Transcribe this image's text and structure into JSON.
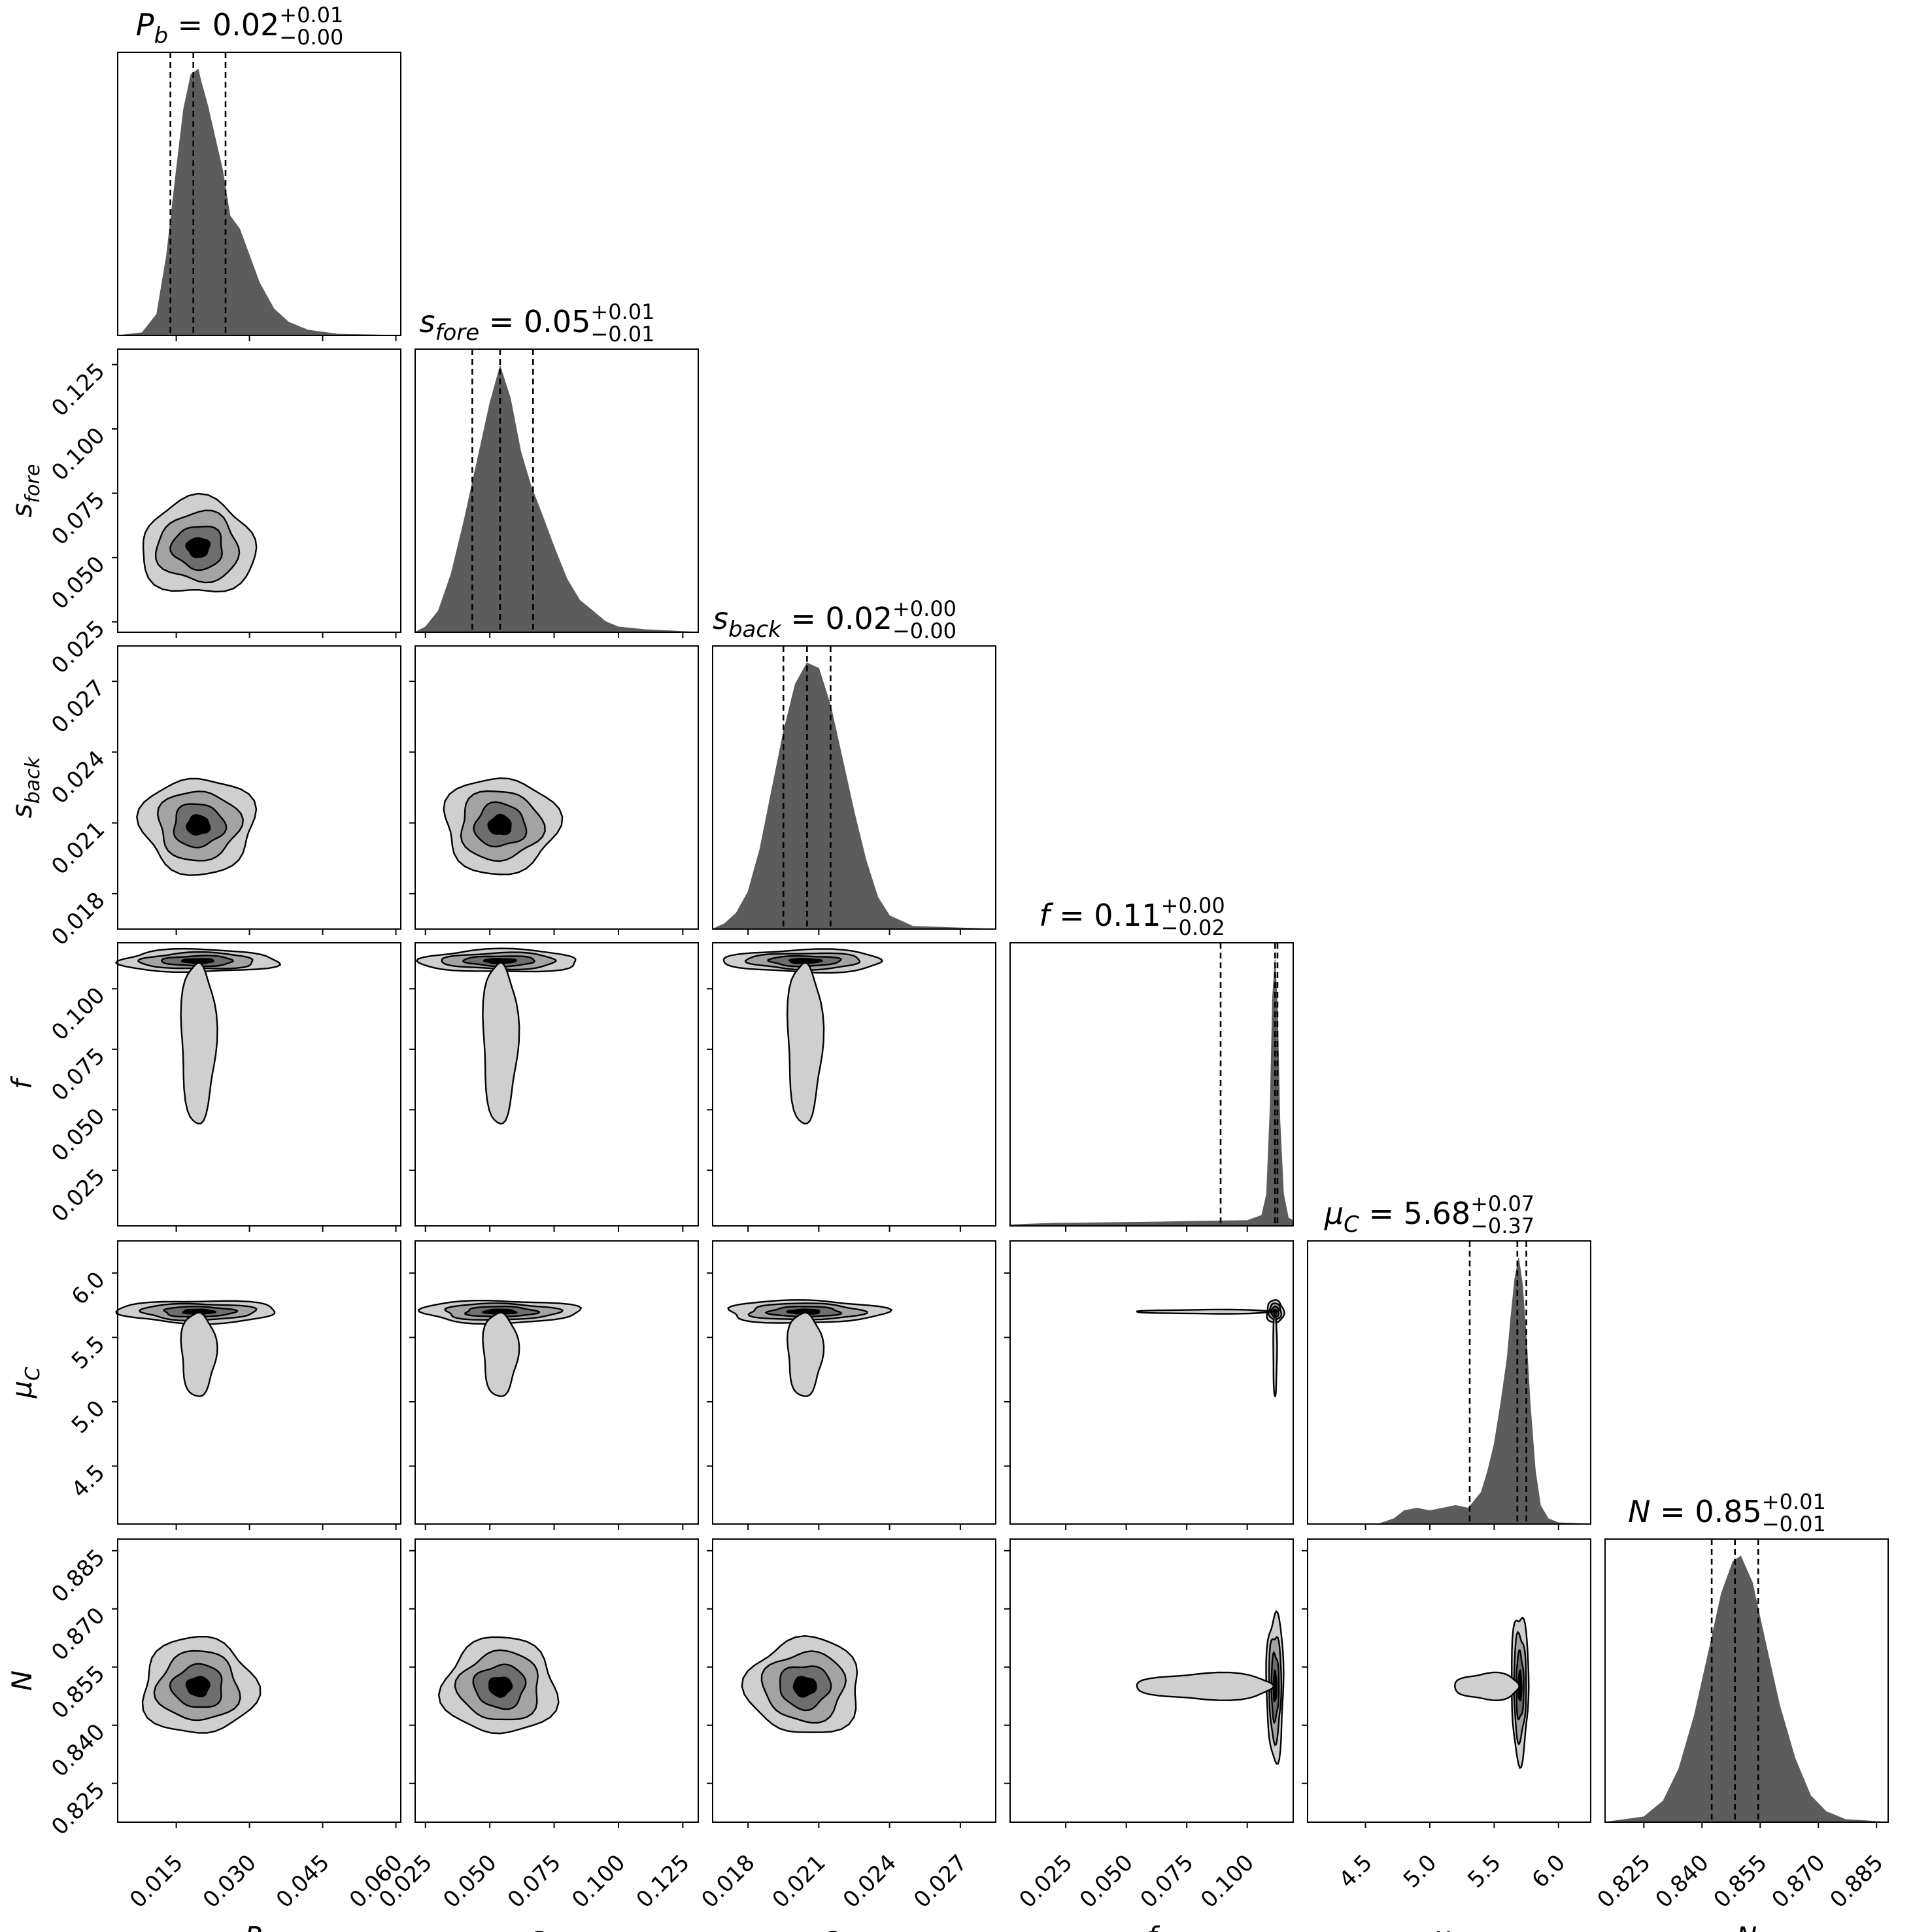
{
  "colors": {
    "background": "#ffffff",
    "hist_fill": "#5c5c5c",
    "contour_levels": [
      "#cfcfcf",
      "#a3a3a3",
      "#6e6e6e",
      "#000000"
    ],
    "axis": "#000000"
  },
  "chart_data": {
    "type": "corner",
    "grid": false,
    "parameters": [
      {
        "key": "Pb",
        "label": {
          "base": "P",
          "sub": "b"
        },
        "title": {
          "value": "0.02",
          "plus": "+0.01",
          "minus": "−0.00"
        },
        "range": [
          0.003,
          0.061
        ],
        "ticks": [
          0.015,
          0.03,
          0.045,
          0.06
        ],
        "tick_labels": [
          "0.015",
          "0.030",
          "0.045",
          "0.060"
        ],
        "median": 0.02,
        "plus": 0.01,
        "minus": 0.0,
        "quantiles": [
          0.0138,
          0.0185,
          0.0251
        ],
        "hist": {
          "x": [
            0.003,
            0.008,
            0.011,
            0.013,
            0.015,
            0.0165,
            0.018,
            0.0195,
            0.02,
            0.0215,
            0.023,
            0.0245,
            0.026,
            0.028,
            0.03,
            0.032,
            0.035,
            0.038,
            0.042,
            0.048,
            0.061
          ],
          "y": [
            0,
            0.01,
            0.08,
            0.3,
            0.62,
            0.85,
            0.98,
            1.0,
            0.96,
            0.86,
            0.74,
            0.62,
            0.45,
            0.4,
            0.3,
            0.2,
            0.1,
            0.05,
            0.02,
            0.005,
            0
          ]
        }
      },
      {
        "key": "s_fore",
        "label": {
          "base": "s",
          "sub": "fore"
        },
        "title": {
          "value": "0.05",
          "plus": "+0.01",
          "minus": "−0.01"
        },
        "range": [
          0.021,
          0.131
        ],
        "ticks": [
          0.025,
          0.05,
          0.075,
          0.1,
          0.125
        ],
        "tick_labels": [
          "0.025",
          "0.050",
          "0.075",
          "0.100",
          "0.125"
        ],
        "median": 0.05,
        "plus": 0.01,
        "minus": 0.01,
        "quantiles": [
          0.0432,
          0.054,
          0.0668
        ],
        "hist": {
          "x": [
            0.021,
            0.025,
            0.03,
            0.035,
            0.04,
            0.045,
            0.05,
            0.054,
            0.058,
            0.062,
            0.066,
            0.07,
            0.075,
            0.08,
            0.085,
            0.09,
            0.095,
            0.1,
            0.11,
            0.131
          ],
          "y": [
            0,
            0.02,
            0.08,
            0.22,
            0.42,
            0.64,
            0.86,
            1.0,
            0.88,
            0.68,
            0.55,
            0.45,
            0.32,
            0.2,
            0.12,
            0.08,
            0.04,
            0.02,
            0.01,
            0
          ]
        }
      },
      {
        "key": "s_back",
        "label": {
          "base": "s",
          "sub": "back"
        },
        "title": {
          "value": "0.02",
          "plus": "+0.00",
          "minus": "−0.00"
        },
        "range": [
          0.0165,
          0.0285
        ],
        "ticks": [
          0.018,
          0.021,
          0.024,
          0.027
        ],
        "tick_labels": [
          "0.018",
          "0.021",
          "0.024",
          "0.027"
        ],
        "median": 0.02,
        "plus": 0.0,
        "minus": 0.0,
        "quantiles": [
          0.0195,
          0.0205,
          0.0215
        ],
        "hist": {
          "x": [
            0.0165,
            0.017,
            0.0175,
            0.018,
            0.0185,
            0.019,
            0.0195,
            0.02,
            0.0205,
            0.021,
            0.0215,
            0.022,
            0.0225,
            0.023,
            0.0235,
            0.024,
            0.025,
            0.0285
          ],
          "y": [
            0,
            0.02,
            0.06,
            0.14,
            0.3,
            0.52,
            0.74,
            0.92,
            1.0,
            0.98,
            0.84,
            0.64,
            0.44,
            0.26,
            0.12,
            0.05,
            0.01,
            0
          ]
        }
      },
      {
        "key": "f",
        "label": {
          "base": "f",
          "sub": ""
        },
        "title": {
          "value": "0.11",
          "plus": "+0.00",
          "minus": "−0.02"
        },
        "range": [
          0.002,
          0.119
        ],
        "ticks": [
          0.025,
          0.05,
          0.075,
          0.1
        ],
        "tick_labels": [
          "0.025",
          "0.050",
          "0.075",
          "0.100"
        ],
        "median": 0.11,
        "plus": 0.0,
        "minus": 0.02,
        "quantiles": [
          0.089,
          0.1115,
          0.1125
        ],
        "hist": {
          "x": [
            0.002,
            0.02,
            0.04,
            0.06,
            0.08,
            0.1,
            0.106,
            0.108,
            0.1095,
            0.1105,
            0.1115,
            0.1125,
            0.1135,
            0.115,
            0.117,
            0.119
          ],
          "y": [
            0.004,
            0.01,
            0.012,
            0.014,
            0.018,
            0.02,
            0.04,
            0.12,
            0.45,
            0.86,
            1.0,
            0.82,
            0.4,
            0.12,
            0.03,
            0.02
          ]
        }
      },
      {
        "key": "mu_C",
        "label": {
          "base": "μ",
          "sub": "C"
        },
        "title": {
          "value": "5.68",
          "plus": "+0.07",
          "minus": "−0.37"
        },
        "range": [
          4.05,
          6.25
        ],
        "ticks": [
          4.5,
          5.0,
          5.5,
          6.0
        ],
        "tick_labels": [
          "4.5",
          "5.0",
          "5.5",
          "6.0"
        ],
        "median": 5.68,
        "plus": 0.07,
        "minus": 0.37,
        "quantiles": [
          5.31,
          5.68,
          5.75
        ],
        "hist": {
          "x": [
            4.05,
            4.6,
            4.72,
            4.8,
            4.9,
            5.0,
            5.1,
            5.2,
            5.3,
            5.4,
            5.45,
            5.5,
            5.55,
            5.6,
            5.63,
            5.66,
            5.69,
            5.72,
            5.75,
            5.78,
            5.82,
            5.86,
            5.92,
            6.0,
            6.25
          ],
          "y": [
            0,
            0,
            0.02,
            0.05,
            0.06,
            0.05,
            0.06,
            0.07,
            0.06,
            0.12,
            0.2,
            0.3,
            0.45,
            0.62,
            0.78,
            0.92,
            1.0,
            0.9,
            0.7,
            0.45,
            0.2,
            0.07,
            0.02,
            0.005,
            0
          ]
        }
      },
      {
        "key": "N",
        "label": {
          "base": "N",
          "sub": ""
        },
        "title": {
          "value": "0.85",
          "plus": "+0.01",
          "minus": "−0.01"
        },
        "range": [
          0.815,
          0.888
        ],
        "ticks": [
          0.825,
          0.84,
          0.855,
          0.87,
          0.885
        ],
        "tick_labels": [
          "0.825",
          "0.840",
          "0.855",
          "0.870",
          "0.885"
        ],
        "median": 0.85,
        "plus": 0.01,
        "minus": 0.01,
        "quantiles": [
          0.8425,
          0.8485,
          0.8545
        ],
        "hist": {
          "x": [
            0.815,
            0.825,
            0.83,
            0.834,
            0.838,
            0.842,
            0.845,
            0.848,
            0.85,
            0.853,
            0.856,
            0.86,
            0.864,
            0.868,
            0.872,
            0.877,
            0.888
          ],
          "y": [
            0,
            0.02,
            0.08,
            0.2,
            0.4,
            0.66,
            0.86,
            0.98,
            1.0,
            0.9,
            0.7,
            0.44,
            0.24,
            0.1,
            0.04,
            0.01,
            0
          ]
        }
      }
    ]
  }
}
